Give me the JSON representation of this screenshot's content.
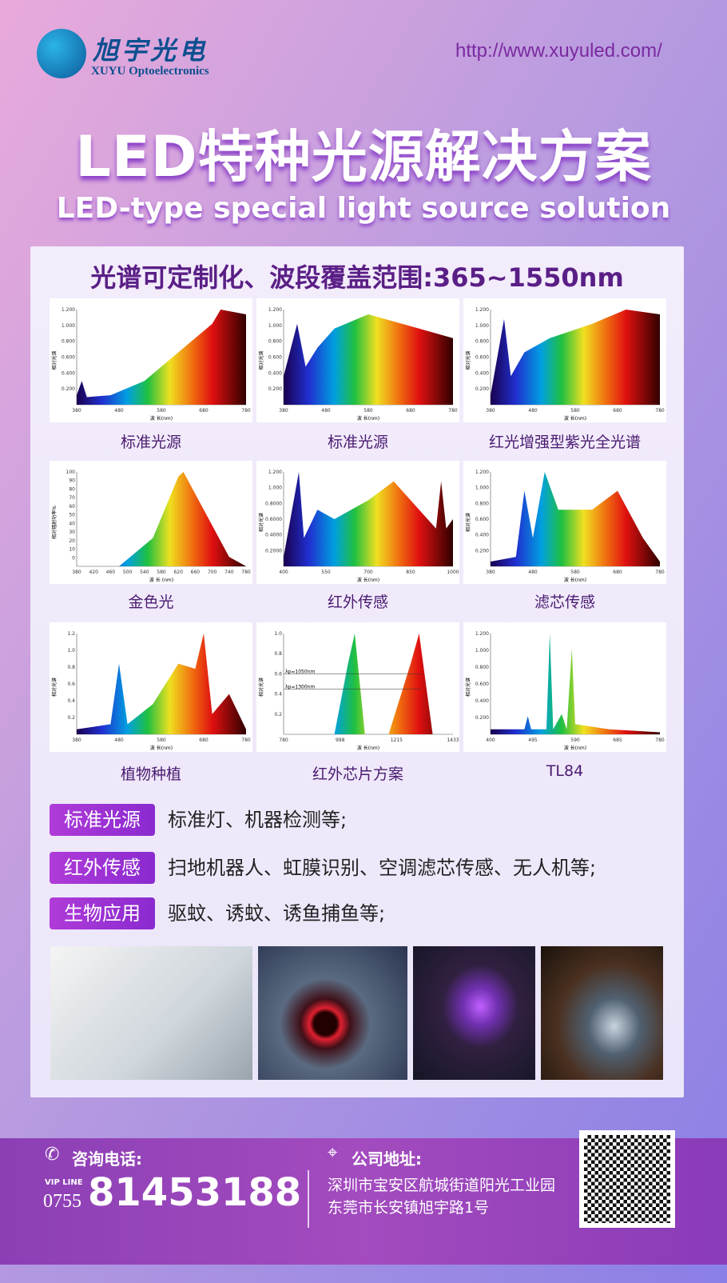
{
  "header": {
    "logo_cn": "旭宇光电",
    "logo_en": "XUYU Optoelectronics",
    "logo_registered": "®",
    "url": "http://www.xuyuled.com/"
  },
  "title": "LED特种光源解决方案",
  "subtitle": "LED-type special light source solution",
  "range_heading": "光谱可定制化、波段覆盖范围:365~1550nm",
  "spectra": [
    {
      "label": "标准光源",
      "x_ticks": [
        "380",
        "480",
        "580",
        "680",
        "780"
      ],
      "y_ticks": [
        "0.200",
        "0.400",
        "0.600",
        "0.800",
        "1.000",
        "1.200"
      ],
      "xlabel": "波 长(nm)",
      "ylabel": "相对光谱"
    },
    {
      "label": "标准光源",
      "x_ticks": [
        "380",
        "480",
        "580",
        "680",
        "780"
      ],
      "y_ticks": [
        "0.200",
        "0.400",
        "0.600",
        "0.800",
        "1.000",
        "1.200"
      ],
      "xlabel": "波 长(nm)",
      "ylabel": "相对光谱"
    },
    {
      "label": "红光增强型紫光全光谱",
      "x_ticks": [
        "380",
        "480",
        "580",
        "680",
        "780"
      ],
      "y_ticks": [
        "0.200",
        "0.400",
        "0.600",
        "0.800",
        "1.000",
        "1.200"
      ],
      "xlabel": "波 长(nm)",
      "ylabel": "相对光谱"
    },
    {
      "label": "金色光",
      "x_ticks": [
        "380",
        "420",
        "460",
        "500",
        "540",
        "580",
        "620",
        "660",
        "700",
        "740",
        "780"
      ],
      "y_ticks": [
        "0",
        "10",
        "20",
        "30",
        "40",
        "50",
        "60",
        "70",
        "80",
        "90",
        "100"
      ],
      "xlabel": "波 长 (nm)",
      "ylabel": "相对辐射功率%"
    },
    {
      "label": "红外传感",
      "x_ticks": [
        "400",
        "550",
        "700",
        "850",
        "1000"
      ],
      "y_ticks": [
        "0.2000",
        "0.4000",
        "0.6000",
        "0.8000",
        "1.000",
        "1.200"
      ],
      "xlabel": "波 长(nm)",
      "ylabel": "相对光谱"
    },
    {
      "label": "滤芯传感",
      "x_ticks": [
        "380",
        "480",
        "580",
        "680",
        "780"
      ],
      "y_ticks": [
        "0.200",
        "0.400",
        "0.600",
        "0.800",
        "1.000",
        "1.200"
      ],
      "xlabel": "波 长(nm)",
      "ylabel": "相对光谱"
    },
    {
      "label": "植物种植",
      "x_ticks": [
        "380",
        "480",
        "580",
        "680",
        "780"
      ],
      "y_ticks": [
        "0.2",
        "0.4",
        "0.6",
        "0.8",
        "1.0",
        "1.2"
      ],
      "xlabel": "波 长(nm)",
      "ylabel": "相对光谱"
    },
    {
      "label": "红外芯片方案",
      "x_ticks": [
        "780",
        "998",
        "1215",
        "1433"
      ],
      "y_ticks": [
        "0.2",
        "0.4",
        "0.6",
        "0.8",
        "1.0"
      ],
      "xlabel": "波 长(nm)",
      "ylabel": "相对光谱",
      "annotations": [
        "λp=1050nm",
        "λp=1300nm"
      ]
    },
    {
      "label": "TL84",
      "x_ticks": [
        "400",
        "495",
        "590",
        "685",
        "780"
      ],
      "y_ticks": [
        "0.200",
        "0.400",
        "0.600",
        "0.800",
        "1.000",
        "1.200"
      ],
      "xlabel": "波 长(nm)",
      "ylabel": "相对光谱"
    }
  ],
  "applications": [
    {
      "tag": "标准光源",
      "text": "标准灯、机器检测等;"
    },
    {
      "tag": "红外传感",
      "text": "扫地机器人、虹膜识别、空调滤芯传感、无人机等;"
    },
    {
      "tag": "生物应用",
      "text": "驱蚊、诱蚊、诱鱼捕鱼等;"
    }
  ],
  "photos": [
    "air-conditioner-remote",
    "machine-vision-ring-light",
    "mosquito-lamp",
    "floor-cleaning-robot"
  ],
  "footer": {
    "phone_label": "咨询电话:",
    "vip_line": "VIP LINE",
    "area_code": "0755",
    "phone": "81453188",
    "address_label": "公司地址:",
    "address1": "深圳市宝安区航城街道阳光工业园",
    "address2": "东莞市长安镇旭宇路1号"
  },
  "colors": {
    "title_shadow": "#8a3fc8",
    "heading": "#5a1f86",
    "tag": "#a036d6",
    "footer": "#9a45bd"
  }
}
